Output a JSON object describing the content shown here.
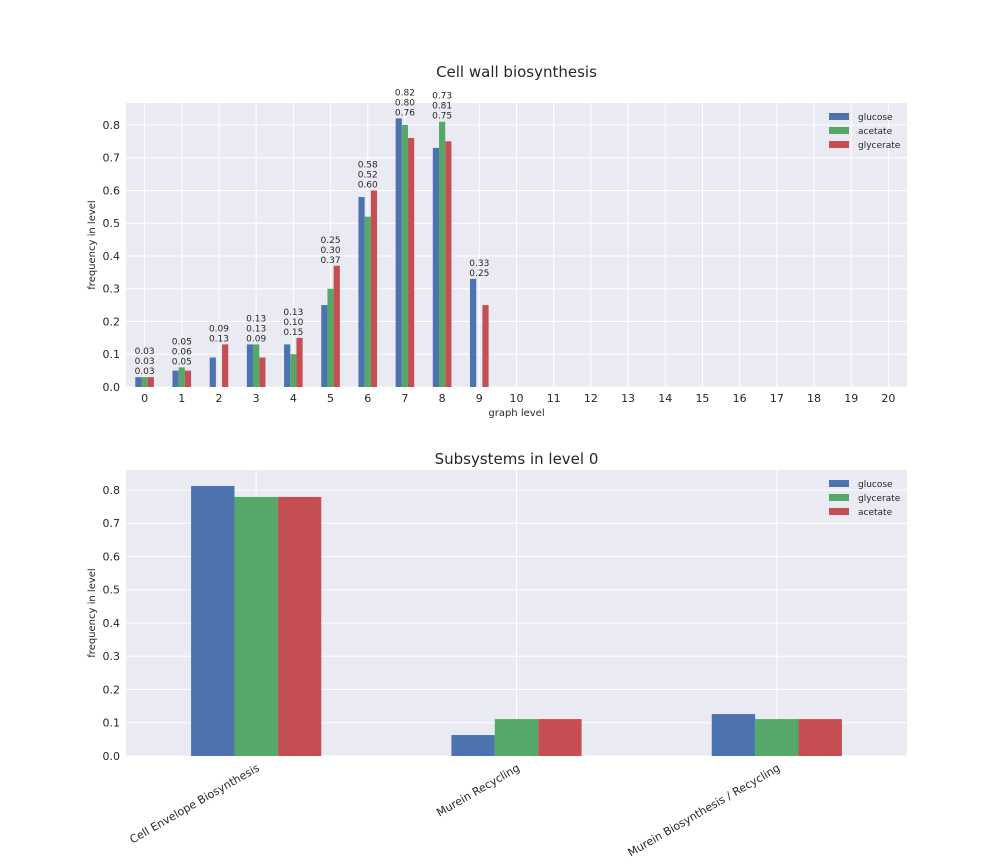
{
  "colors": {
    "background": "#EAEAF2",
    "grid": "#FFFFFF",
    "blue": "#4C72B0",
    "green": "#55A868",
    "red": "#C44E52"
  },
  "chart_data": [
    {
      "type": "bar",
      "title": "Cell wall biosynthesis",
      "xlabel": "graph level",
      "ylabel": "frequency in level",
      "ylim": [
        0,
        0.867
      ],
      "yticks": [
        "0.0",
        "0.1",
        "0.2",
        "0.3",
        "0.4",
        "0.5",
        "0.6",
        "0.7",
        "0.8"
      ],
      "categories": [
        "0",
        "1",
        "2",
        "3",
        "4",
        "5",
        "6",
        "7",
        "8",
        "9",
        "10",
        "11",
        "12",
        "13",
        "14",
        "15",
        "16",
        "17",
        "18",
        "19",
        "20"
      ],
      "legend_position": "top-right",
      "grid": true,
      "series": [
        {
          "name": "glucose",
          "color": "#4C72B0",
          "values": [
            0.03,
            0.05,
            0.09,
            0.13,
            0.13,
            0.25,
            0.58,
            0.82,
            0.73,
            0.33,
            0,
            0,
            0,
            0,
            0,
            0,
            0,
            0,
            0,
            0,
            0
          ]
        },
        {
          "name": "acetate",
          "color": "#55A868",
          "values": [
            0.03,
            0.06,
            0,
            0.13,
            0.1,
            0.3,
            0.52,
            0.8,
            0.81,
            0,
            0,
            0,
            0,
            0,
            0,
            0,
            0,
            0,
            0,
            0,
            0
          ]
        },
        {
          "name": "glycerate",
          "color": "#C44E52",
          "values": [
            0.03,
            0.05,
            0.13,
            0.09,
            0.15,
            0.37,
            0.6,
            0.76,
            0.75,
            0.25,
            0,
            0,
            0,
            0,
            0,
            0,
            0,
            0,
            0,
            0,
            0
          ]
        }
      ]
    },
    {
      "type": "bar",
      "title": "Subsystems in level 0",
      "xlabel": "",
      "ylabel": "frequency in level",
      "ylim": [
        0,
        0.86
      ],
      "yticks": [
        "0.0",
        "0.1",
        "0.2",
        "0.3",
        "0.4",
        "0.5",
        "0.6",
        "0.7",
        "0.8"
      ],
      "categories": [
        "Cell Envelope Biosynthesis",
        "Murein Recycling",
        "Murein Biosynthesis / Recycling"
      ],
      "legend_position": "top-right",
      "grid": true,
      "series": [
        {
          "name": "glucose",
          "color": "#4C72B0",
          "values": [
            0.812,
            0.063,
            0.126
          ]
        },
        {
          "name": "glycerate",
          "color": "#55A868",
          "values": [
            0.779,
            0.111,
            0.111
          ]
        },
        {
          "name": "acetate",
          "color": "#C44E52",
          "values": [
            0.779,
            0.111,
            0.111
          ]
        }
      ]
    }
  ]
}
